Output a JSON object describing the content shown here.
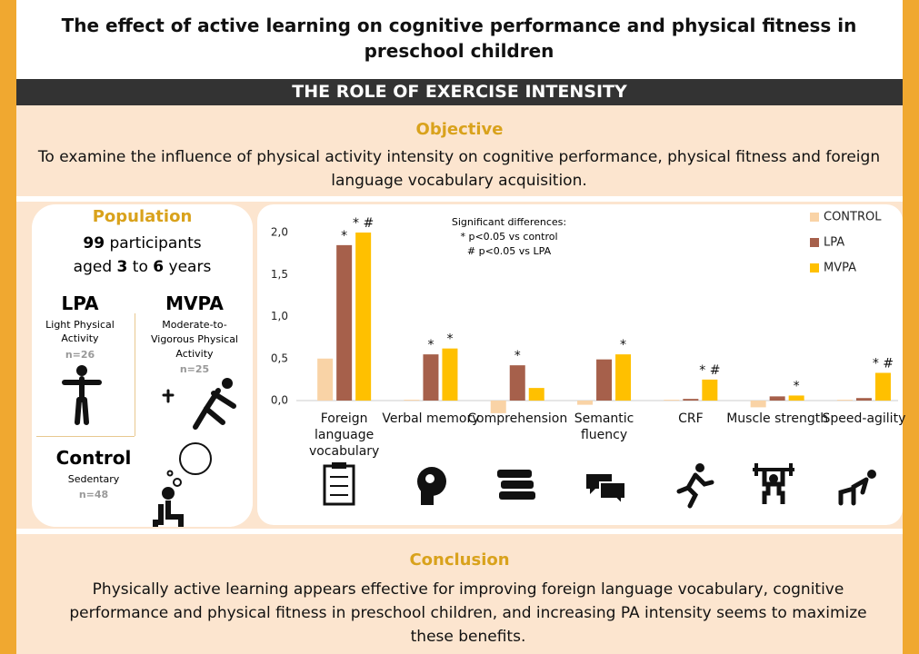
{
  "header": {
    "title": "The effect of active learning on cognitive performance and physical fitness in preschool children",
    "subtitle": "THE ROLE OF EXERCISE INTENSITY"
  },
  "objective": {
    "heading": "Objective",
    "text": "To examine the influence of physical activity intensity on cognitive performance, physical fitness and foreign language vocabulary acquisition."
  },
  "population": {
    "heading": "Population",
    "count": "99",
    "count_unit": "participants",
    "age_prefix": "aged",
    "age_min": "3",
    "age_mid": "to",
    "age_max": "6",
    "age_unit": "years",
    "groups": [
      {
        "name": "LPA",
        "description": "Light Physical Activity",
        "n": "n=26"
      },
      {
        "name": "MVPA",
        "description": "Moderate-to-Vigorous Physical Activity",
        "n": "n=25"
      },
      {
        "name": "Control",
        "description": "Sedentary",
        "n": "n=48"
      }
    ]
  },
  "chart_data": {
    "type": "bar",
    "categories": [
      "Foreign language vocabulary",
      "Verbal memory",
      "Comprehension",
      "Semantic fluency",
      "CRF",
      "Muscle strength",
      "Speed-agility"
    ],
    "series": [
      {
        "name": "CONTROL",
        "color": "#f9d3a6",
        "values": [
          0.5,
          0.01,
          -0.15,
          -0.05,
          0.01,
          -0.08,
          0.01
        ],
        "significance": [
          null,
          null,
          null,
          null,
          null,
          null,
          null
        ]
      },
      {
        "name": "LPA",
        "color": "#a6604b",
        "values": [
          1.85,
          0.55,
          0.42,
          0.49,
          0.02,
          0.05,
          0.03
        ],
        "significance": [
          "*",
          "*",
          "*",
          null,
          null,
          null,
          null
        ]
      },
      {
        "name": "MVPA",
        "color": "#ffc000",
        "values": [
          2.0,
          0.62,
          0.15,
          0.55,
          0.25,
          0.06,
          0.33
        ],
        "significance": [
          "* #",
          "*",
          null,
          "*",
          "* #",
          "*",
          "* #"
        ]
      }
    ],
    "ylim": [
      0,
      2.0
    ],
    "yticks": [
      {
        "value": 0,
        "label": "0,0"
      },
      {
        "value": 0.5,
        "label": "0,5"
      },
      {
        "value": 1.0,
        "label": "1,0"
      },
      {
        "value": 1.5,
        "label": "1,5"
      },
      {
        "value": 2.0,
        "label": "2,0"
      }
    ],
    "note": [
      "Significant differences:",
      "* p<0.05 vs control",
      "# p<0.05 vs LPA"
    ],
    "legend": "top-right",
    "grid": false
  },
  "conclusion": {
    "heading": "Conclusion",
    "text": "Physically active learning appears effective for improving foreign language vocabulary, cognitive performance and physical fitness in preschool children, and increasing PA intensity seems to maximize these benefits."
  }
}
